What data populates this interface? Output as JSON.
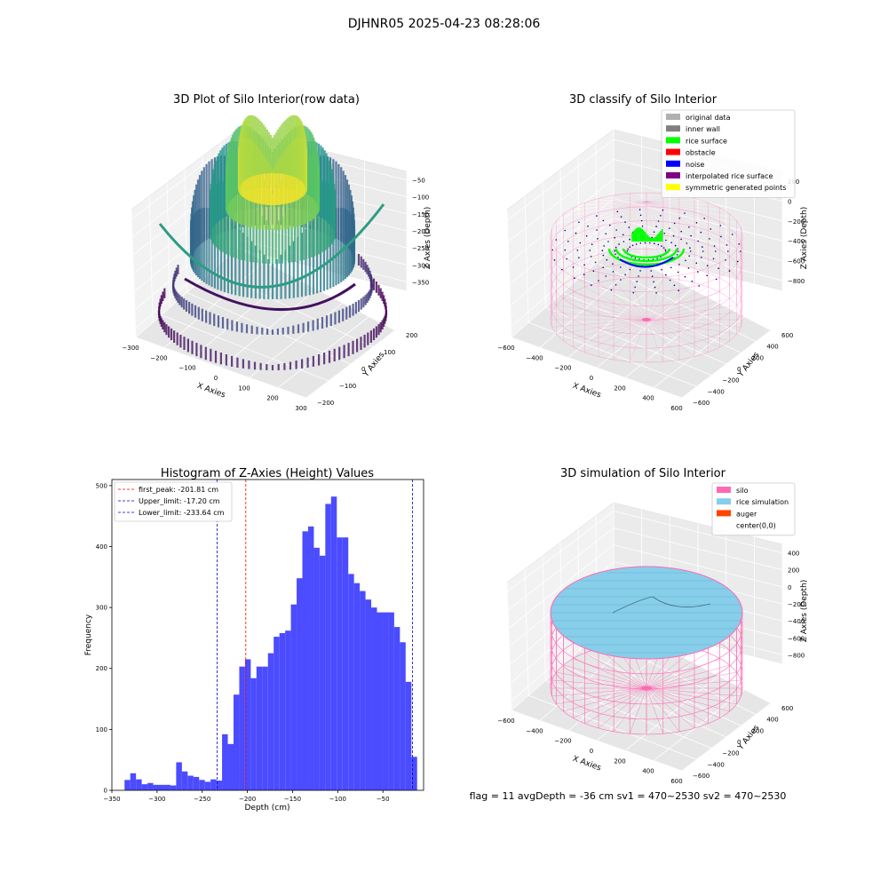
{
  "figure": {
    "suptitle": "DJHNR05 2025-04-23 08:28:06",
    "footer": "flag = 11   avgDepth = -36 cm   sv1 = 470~2530  sv2 = 470~2530"
  },
  "colors": {
    "hist_bar": "#4b4bff",
    "first_peak": "#ff0000",
    "limit": "#0000cc",
    "silo": "#ff69b4",
    "rice_simulation": "#87ceeb",
    "auger": "#ff4500",
    "rice_surface": "#00ff00",
    "noise": "#0000ff",
    "grid_pane": "#f2f2f2"
  },
  "chart_data": [
    {
      "type": "scatter",
      "projection": "3d",
      "title": "3D Plot of Silo Interior(row data)",
      "xlabel": "X Axies",
      "ylabel": "Y Axies",
      "zlabel": "Z Axies (Depth)",
      "xticks": [
        "−300",
        "−200",
        "−100",
        "0",
        "100",
        "200",
        "300"
      ],
      "yticks": [
        "−200",
        "−100",
        "0",
        "100",
        "200"
      ],
      "zticks": [
        "−50",
        "−100",
        "−150",
        "−200",
        "−250",
        "−300",
        "−350"
      ],
      "xlim": [
        -300,
        300
      ],
      "ylim": [
        -200,
        200
      ],
      "zlim": [
        -350,
        -50
      ],
      "colormap": "viridis"
    },
    {
      "type": "scatter",
      "projection": "3d",
      "title": "3D classify of Silo Interior",
      "xlabel": "X Axies",
      "ylabel": "Y Axies",
      "zlabel": "Z Axies (Depth)",
      "xticks": [
        "−600",
        "−400",
        "−200",
        "0",
        "200",
        "400",
        "600"
      ],
      "yticks": [
        "−600",
        "−400",
        "−200",
        "0",
        "200",
        "400",
        "600"
      ],
      "zticks": [
        "200",
        "0",
        "−200",
        "−400",
        "−600",
        "−800"
      ],
      "legend_position": "top-right",
      "legend": [
        {
          "label": "original data",
          "color": "#b0b0b0"
        },
        {
          "label": "inner wall",
          "color": "#808080"
        },
        {
          "label": "rice surface",
          "color": "#00ff00"
        },
        {
          "label": "obstacle",
          "color": "#ff0000"
        },
        {
          "label": "noise",
          "color": "#0000ff"
        },
        {
          "label": "interpolated rice surface",
          "color": "#800080"
        },
        {
          "label": "symmetric generated points",
          "color": "#ffff00"
        }
      ]
    },
    {
      "type": "bar",
      "title": "Histogram of Z-Axies (Height) Values",
      "xlabel": "Depth (cm)",
      "ylabel": "Frequency",
      "xlim": [
        -350,
        -5
      ],
      "ylim": [
        0,
        510
      ],
      "xticks": [
        -350,
        -300,
        -250,
        -200,
        -150,
        -100,
        -50
      ],
      "yticks": [
        0,
        100,
        200,
        300,
        400,
        500
      ],
      "bin_start": -336,
      "bin_width": 6.35,
      "counts": [
        17,
        28,
        18,
        10,
        12,
        9,
        9,
        9,
        8,
        46,
        31,
        24,
        22,
        17,
        14,
        18,
        16,
        92,
        76,
        157,
        203,
        215,
        184,
        203,
        203,
        225,
        252,
        258,
        262,
        305,
        348,
        425,
        433,
        398,
        385,
        470,
        482,
        415,
        415,
        355,
        340,
        327,
        313,
        300,
        292,
        292,
        292,
        268,
        243,
        178,
        55
      ],
      "lines": [
        {
          "label": "first_peak: -201.81 cm",
          "x": -201.81,
          "color": "#ff0000"
        },
        {
          "label": "Upper_limit: -17.20 cm",
          "x": -17.2,
          "color": "#0000cc"
        },
        {
          "label": "Lower_limit: -233.64 cm",
          "x": -233.64,
          "color": "#0000cc"
        }
      ],
      "legend_position": "top-left"
    },
    {
      "type": "surface",
      "projection": "3d",
      "title": "3D simulation of Silo Interior",
      "xlabel": "X Axies",
      "ylabel": "Y Axies",
      "zlabel": "Z Axies (Depth)",
      "xticks": [
        "−600",
        "−400",
        "−200",
        "0",
        "200",
        "400",
        "600"
      ],
      "yticks": [
        "−600",
        "−400",
        "−200",
        "0",
        "200",
        "400",
        "600"
      ],
      "zticks": [
        "400",
        "200",
        "0",
        "−200",
        "−400",
        "−600",
        "−800"
      ],
      "legend_position": "top-right",
      "legend": [
        {
          "label": "silo",
          "color": "#ff69b4"
        },
        {
          "label": "rice simulation",
          "color": "#87ceeb"
        },
        {
          "label": "auger",
          "color": "#ff4500"
        },
        {
          "label": "center(0,0)",
          "color": ""
        }
      ]
    }
  ]
}
